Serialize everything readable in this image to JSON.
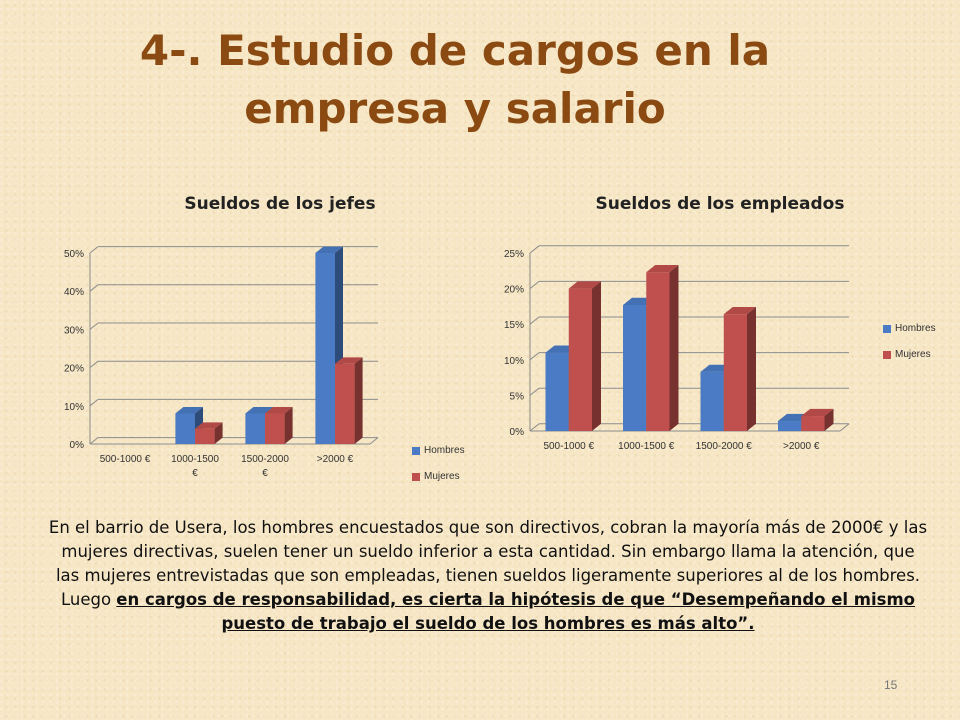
{
  "title_line1": "4-. Estudio de cargos en la",
  "title_line2": "empresa y salario",
  "chart_data": [
    {
      "type": "bar",
      "title": "Sueldos de los jefes",
      "categories": [
        [
          "500-1000 €"
        ],
        [
          "1000-1500",
          "€"
        ],
        [
          "1500-2000",
          "€"
        ],
        [
          ">2000 €"
        ]
      ],
      "series": [
        {
          "name": "Hombres",
          "values": [
            0,
            8,
            8,
            50
          ],
          "color": "#4a7bc4"
        },
        {
          "name": "Mujeres",
          "values": [
            0,
            4,
            8,
            21
          ],
          "color": "#c0504d"
        }
      ],
      "yticks": [
        "0%",
        "10%",
        "20%",
        "30%",
        "40%",
        "50%"
      ],
      "ylim": [
        0,
        50
      ],
      "legend": "right-bottom"
    },
    {
      "type": "bar",
      "title": "Sueldos de los empleados",
      "categories": [
        [
          "500-1000 €"
        ],
        [
          "1000-1500 €"
        ],
        [
          "1500-2000 €"
        ],
        [
          ">2000 €"
        ]
      ],
      "series": [
        {
          "name": "Hombres",
          "values": [
            11,
            17.7,
            8.3,
            1.4
          ],
          "color": "#4a7bc4"
        },
        {
          "name": "Mujeres",
          "values": [
            20,
            22.3,
            16.4,
            2.1
          ],
          "color": "#c0504d"
        }
      ],
      "yticks": [
        "0%",
        "5%",
        "10%",
        "15%",
        "20%",
        "25%"
      ],
      "ylim": [
        0,
        25
      ],
      "legend": "right"
    }
  ],
  "paragraph": {
    "plain": "En el barrio de Usera, los hombres encuestados que son directivos, cobran la mayoría más de 2000€ y las mujeres directivas, suelen tener un sueldo inferior a esta cantidad. Sin embargo llama la atención, que las mujeres entrevistadas que son empleadas, tienen sueldos ligeramente superiores al de los hombres. Luego ",
    "emphasis": "en cargos de responsabilidad, es cierta la hipótesis de que “Desempeñando el mismo puesto de trabajo el sueldo de los hombres es más alto”."
  },
  "page_number": "15"
}
